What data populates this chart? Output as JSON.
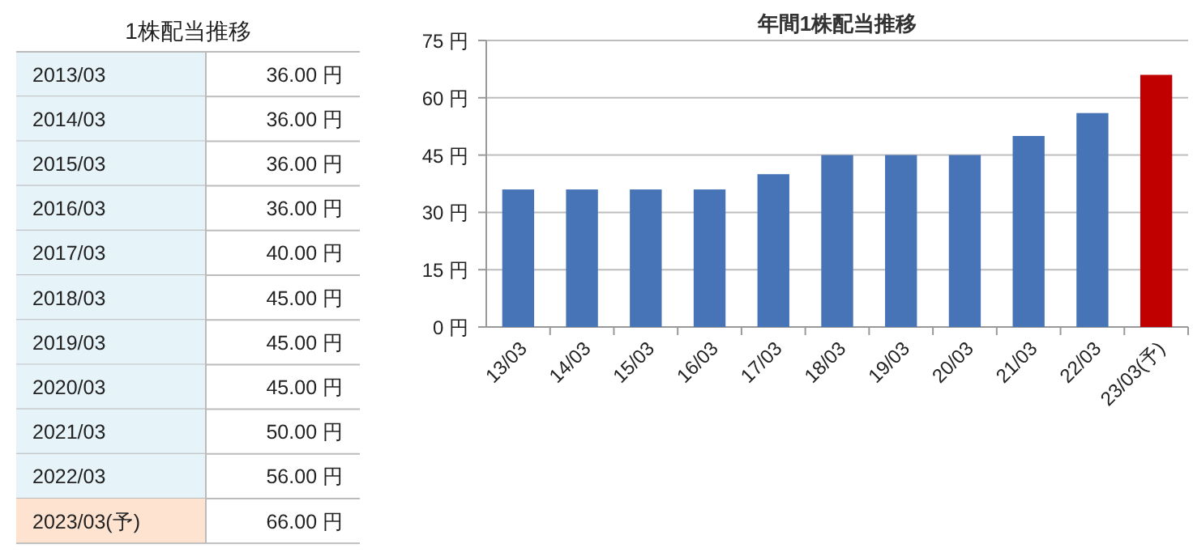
{
  "chart_data": [
    {
      "type": "other",
      "title": "1株配当推移",
      "categories": [
        "2013/03",
        "2014/03",
        "2015/03",
        "2016/03",
        "2017/03",
        "2018/03",
        "2019/03",
        "2020/03",
        "2021/03",
        "2022/03",
        "2023/03(予)"
      ],
      "values": [
        36,
        36,
        36,
        36,
        40,
        45,
        45,
        45,
        50,
        56,
        66
      ],
      "value_labels": [
        "36.00 円",
        "36.00 円",
        "36.00 円",
        "36.00 円",
        "40.00 円",
        "45.00 円",
        "45.00 円",
        "45.00 円",
        "50.00 円",
        "56.00 円",
        "66.00 円"
      ],
      "colors": [
        "#e6f3f8",
        "#e6f3f8",
        "#e6f3f8",
        "#e6f3f8",
        "#e6f3f8",
        "#e6f3f8",
        "#e6f3f8",
        "#e6f3f8",
        "#e6f3f8",
        "#e6f3f8",
        "#fde3d0"
      ]
    },
    {
      "type": "bar",
      "title": "年間1株配当推移",
      "categories": [
        "13/03",
        "14/03",
        "15/03",
        "16/03",
        "17/03",
        "18/03",
        "19/03",
        "20/03",
        "21/03",
        "22/03",
        "23/03(予)"
      ],
      "values": [
        36,
        36,
        36,
        36,
        40,
        45,
        45,
        45,
        50,
        56,
        66
      ],
      "colors": [
        "#4674b7",
        "#4674b7",
        "#4674b7",
        "#4674b7",
        "#4674b7",
        "#4674b7",
        "#4674b7",
        "#4674b7",
        "#4674b7",
        "#4674b7",
        "#c00000"
      ],
      "ylim": [
        0,
        75
      ],
      "yticks": [
        {
          "value": 0,
          "label": "0 円"
        },
        {
          "value": 15,
          "label": "15 円"
        },
        {
          "value": 30,
          "label": "30 円"
        },
        {
          "value": 45,
          "label": "45 円"
        },
        {
          "value": 60,
          "label": "60 円"
        },
        {
          "value": 75,
          "label": "75 円"
        }
      ],
      "grid": "y"
    }
  ]
}
